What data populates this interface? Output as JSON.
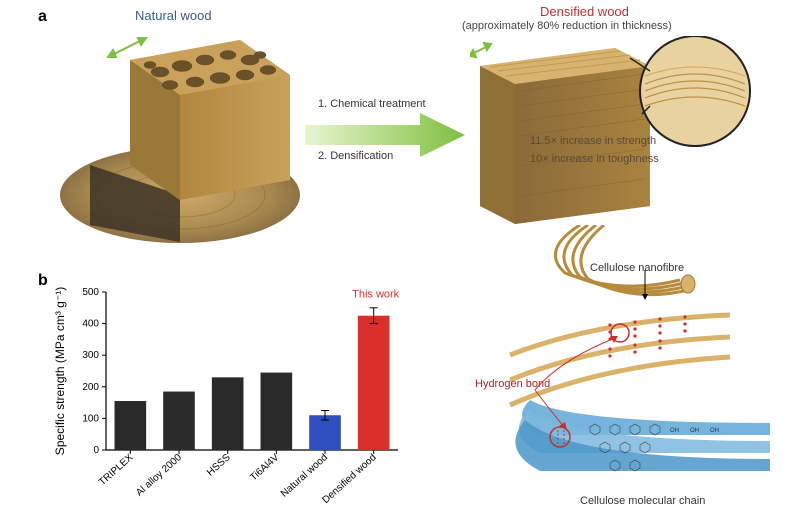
{
  "panel_a": {
    "label": "a",
    "natural_title": "Natural wood",
    "densified_title": "Densified wood",
    "densified_subtitle": "(approximately 80% reduction in thickness)",
    "process_steps": [
      "1. Chemical treatment",
      "2. Densification"
    ],
    "inset_lines": [
      "11.5× increase in strength",
      "10× increase in toughness"
    ],
    "molecular": {
      "nanofibre_label": "Cellulose nanofibre",
      "hbond_label": "Hydrogen bond",
      "chain_label": "Cellulose molecular chain"
    },
    "colors": {
      "wood_light": "#c9a15a",
      "wood_mid": "#b1863f",
      "wood_dark": "#8a6a38",
      "wood_darkest": "#5c4a2e",
      "tube_hole": "#6b5128",
      "arrow_green_light": "#cfe8a5",
      "arrow_green_dark": "#7fbf3f",
      "arrow_accent": "#a8d86a",
      "circle_stroke": "#222",
      "nanofibre": "#d9b36a",
      "chain_blue": "#5da7d6",
      "hbond_red": "#c9302c"
    }
  },
  "panel_b": {
    "label": "b",
    "chart": {
      "type": "bar",
      "ylabel": "Specific strength (MPa cm³ g⁻¹)",
      "ylim": [
        0,
        500
      ],
      "ytick_step": 100,
      "categories": [
        "TRIPLEX",
        "Al alloy 2000",
        "HSSS",
        "Ti6Al4V",
        "Natural wood",
        "Densified wood"
      ],
      "values": [
        155,
        185,
        230,
        245,
        110,
        425
      ],
      "errors": [
        0,
        0,
        0,
        0,
        15,
        25
      ],
      "bar_colors": [
        "#2a2a2a",
        "#2a2a2a",
        "#2a2a2a",
        "#2a2a2a",
        "#2f4fbf",
        "#d9302c"
      ],
      "cat_label_colors": [
        "#000",
        "#000",
        "#000",
        "#000",
        "#2f4fbf",
        "#d9302c"
      ],
      "annotation": "This work",
      "annotation_color": "#d9302c",
      "bg": "#ffffff",
      "axis_color": "#000",
      "label_fontsize": 12,
      "tick_fontsize": 10,
      "bar_width": 0.65
    }
  }
}
